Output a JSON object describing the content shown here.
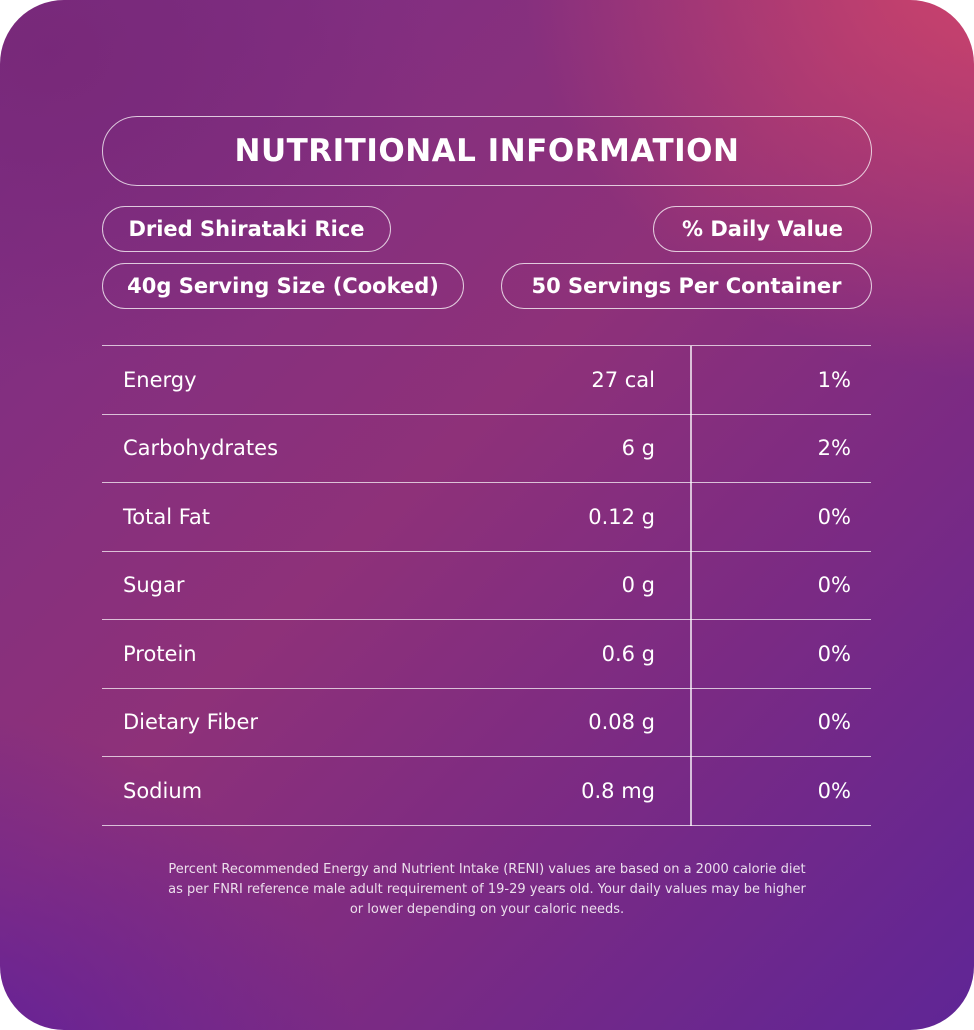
{
  "title": "NUTRITIONAL INFORMATION",
  "product": "Dried Shirataki Rice",
  "daily_value_label": "% Daily Value",
  "serving_size": "40g Serving Size (Cooked)",
  "servings_per_container": "50 Servings Per Container",
  "nutrients": [
    {
      "name": "Energy",
      "amount": "27 cal",
      "daily_value": "1%"
    },
    {
      "name": "Carbohydrates",
      "amount": "6 g",
      "daily_value": "2%"
    },
    {
      "name": "Total Fat",
      "amount": "0.12 g",
      "daily_value": "0%"
    },
    {
      "name": "Sugar",
      "amount": "0 g",
      "daily_value": "0%"
    },
    {
      "name": "Protein",
      "amount": "0.6 g",
      "daily_value": "0%"
    },
    {
      "name": "Dietary Fiber",
      "amount": "0.08 g",
      "daily_value": "0%"
    },
    {
      "name": "Sodium",
      "amount": "0.8 mg",
      "daily_value": "0%"
    }
  ],
  "footnote": "Percent Recommended Energy and Nutrient Intake (RENI) values are based on a 2000 calorie diet as per FNRI reference male adult requirement of 19-29 years old. Your daily values may be higher or lower depending on your caloric needs.",
  "colors": {
    "gradient_top_right": "#d74669",
    "gradient_bottom_left": "#5a1ea0",
    "text": "#ffffff"
  }
}
